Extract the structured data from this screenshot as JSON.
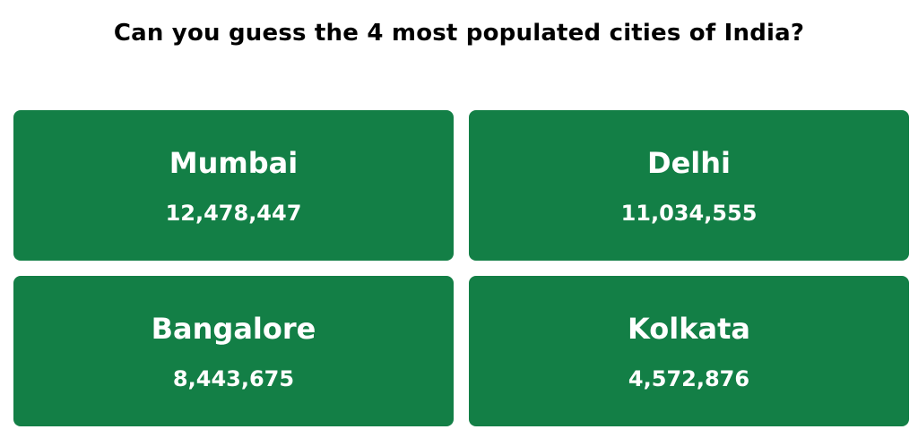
{
  "question": "Can you guess the 4 most populated cities of India?",
  "colors": {
    "card": "#137f46",
    "card_text": "#ffffff",
    "question_text": "#000000"
  },
  "cities": [
    {
      "name": "Mumbai",
      "population": "12,478,447"
    },
    {
      "name": "Delhi",
      "population": "11,034,555"
    },
    {
      "name": "Bangalore",
      "population": "8,443,675"
    },
    {
      "name": "Kolkata",
      "population": "4,572,876"
    }
  ]
}
